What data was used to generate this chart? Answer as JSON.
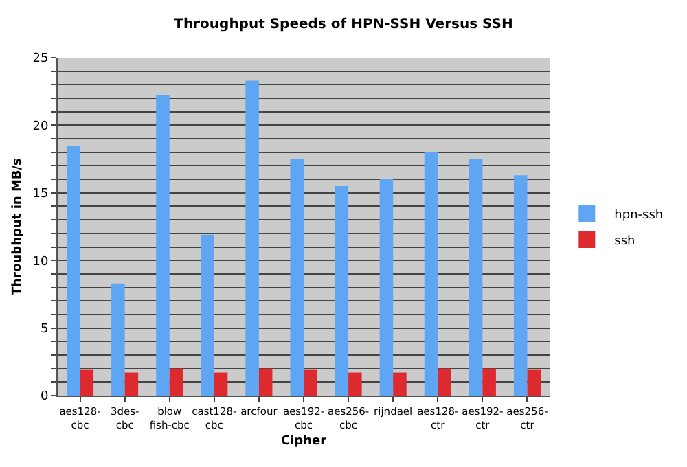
{
  "chart_data": {
    "type": "bar",
    "title": "Throughput Speeds of HPN-SSH Versus SSH",
    "xlabel": "Cipher",
    "ylabel": "Throubhput in MB/s",
    "categories": [
      "aes128-\ncbc",
      "3des-\ncbc",
      "blow\nfish-cbc",
      "cast128-\ncbc",
      "arcfour",
      "aes192-\ncbc",
      "aes256-\ncbc",
      "rijndael",
      "aes128-\nctr",
      "aes192-\nctr",
      "aes256-\nctr"
    ],
    "series": [
      {
        "name": "hpn-ssh",
        "color": "#5ea6f4",
        "values": [
          18.5,
          8.3,
          22.2,
          11.9,
          23.3,
          17.5,
          15.5,
          16,
          18,
          17.5,
          16.3
        ]
      },
      {
        "name": "ssh",
        "color": "#dc2a2e",
        "values": [
          1.9,
          1.7,
          2,
          1.7,
          2,
          1.9,
          1.7,
          1.7,
          2,
          2,
          1.9
        ]
      }
    ],
    "ylim": [
      0,
      25
    ],
    "yticks": [
      0,
      {
        "value": 1,
        "label": null
      },
      {
        "value": 2,
        "label": null
      },
      {
        "value": 3,
        "label": null
      },
      {
        "value": 4,
        "label": null
      },
      5,
      {
        "value": 6,
        "label": null
      },
      {
        "value": 7,
        "label": null
      },
      {
        "value": 8,
        "label": null
      },
      {
        "value": 9,
        "label": null
      },
      10,
      {
        "value": 11,
        "label": null
      },
      {
        "value": 12,
        "label": null
      },
      {
        "value": 13,
        "label": null
      },
      {
        "value": 14,
        "label": null
      },
      15,
      {
        "value": 16,
        "label": null
      },
      {
        "value": 17,
        "label": null
      },
      {
        "value": 18,
        "label": null
      },
      {
        "value": 19,
        "label": null
      },
      20,
      {
        "value": 21,
        "label": null
      },
      {
        "value": 22,
        "label": null
      },
      {
        "value": 23,
        "label": null
      },
      {
        "value": 24,
        "label": null
      },
      25
    ],
    "grid": "y",
    "legend": "right"
  }
}
